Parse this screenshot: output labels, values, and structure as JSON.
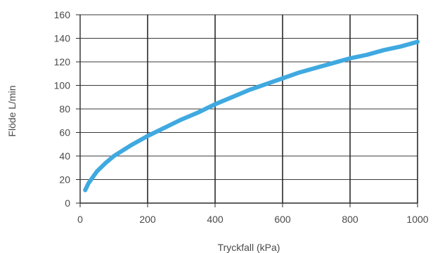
{
  "chart_data": {
    "type": "line",
    "title": "",
    "xlabel": "Tryckfall (kPa)",
    "ylabel": "Flöde L/min",
    "xlim": [
      0,
      1000
    ],
    "ylim": [
      0,
      160
    ],
    "x_ticks": [
      0,
      200,
      400,
      600,
      800,
      1000
    ],
    "y_ticks": [
      0,
      20,
      40,
      60,
      80,
      100,
      120,
      140,
      160
    ],
    "grid": true,
    "legend": "none",
    "series": [
      {
        "color": "#3fa9e0",
        "points": [
          [
            15,
            11
          ],
          [
            25,
            17
          ],
          [
            50,
            27
          ],
          [
            75,
            34
          ],
          [
            100,
            40
          ],
          [
            150,
            49
          ],
          [
            200,
            57
          ],
          [
            250,
            64
          ],
          [
            300,
            71
          ],
          [
            350,
            77
          ],
          [
            400,
            84
          ],
          [
            450,
            90
          ],
          [
            500,
            96
          ],
          [
            550,
            101
          ],
          [
            600,
            106
          ],
          [
            650,
            111
          ],
          [
            700,
            115
          ],
          [
            750,
            119
          ],
          [
            800,
            123
          ],
          [
            850,
            126
          ],
          [
            900,
            130
          ],
          [
            950,
            133
          ],
          [
            1000,
            137
          ]
        ]
      }
    ]
  }
}
